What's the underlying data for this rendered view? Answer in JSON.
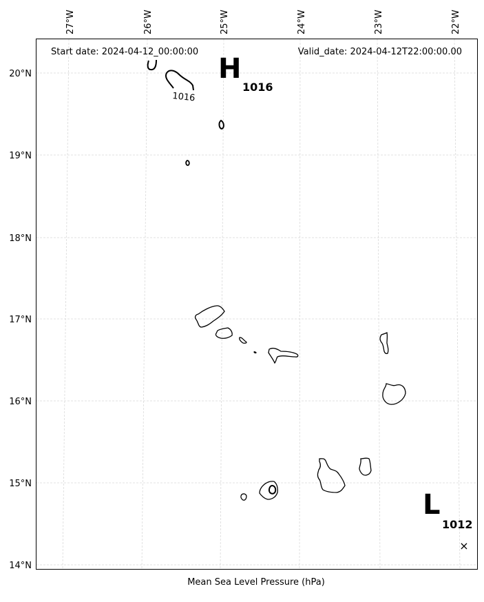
{
  "header": {
    "start_date": "Start date: 2024-04-12_00:00:00",
    "valid_date": "Valid_date: 2024-04-12T22:00:00.00"
  },
  "axis": {
    "xlabel": "Mean Sea Level Pressure (hPa)",
    "lon_ticks": [
      "27°W",
      "26°W",
      "25°W",
      "24°W",
      "23°W",
      "22°W"
    ],
    "lat_ticks": [
      "20°N",
      "19°N",
      "18°N",
      "17°N",
      "16°N",
      "15°N",
      "14°N"
    ]
  },
  "pressure_centers": [
    {
      "letter": "H",
      "value": "1016",
      "lon": -24.9,
      "lat": 20.0
    },
    {
      "letter": "L",
      "value": "1012",
      "lon": -22.3,
      "lat": 14.6
    }
  ],
  "contour_labels": [
    "1016"
  ],
  "marker": {
    "symbol": "×",
    "lon": -22.0,
    "lat": 14.2
  },
  "colors": {
    "coast": "#000000",
    "grid": "#d9d9d9",
    "frame": "#000000"
  },
  "map_data": {
    "projection": "PlateCarree",
    "lon_range": [
      -27.3,
      -21.8
    ],
    "lat_range": [
      13.95,
      20.4
    ],
    "grid": true
  }
}
